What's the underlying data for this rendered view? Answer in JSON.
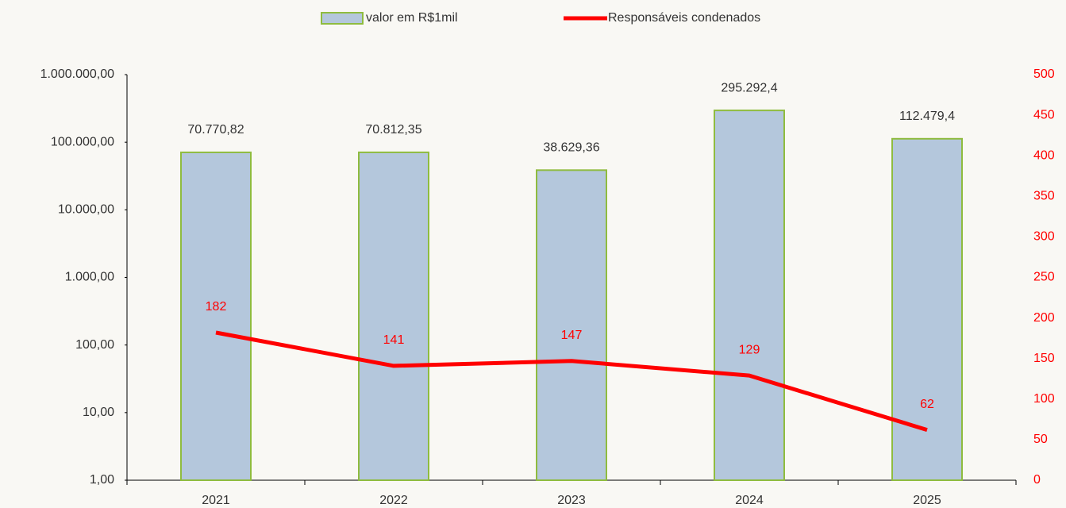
{
  "chart_data": {
    "type": "bar",
    "categories": [
      "2021",
      "2022",
      "2023",
      "2024",
      "2025"
    ],
    "series": [
      {
        "name": "valor em R$1mil",
        "type": "bar",
        "color": "#b4c7dc",
        "edge_color": "#8fbc3f",
        "values": [
          70770.82,
          70812.35,
          38629.36,
          295292.4,
          112479.4
        ],
        "value_labels": [
          "70.770,82",
          "70.812,35",
          "38.629,36",
          "295.292,4",
          "112.479,4"
        ]
      },
      {
        "name": "Responsáveis condenados",
        "type": "line",
        "axis": "y2",
        "color": "#ff0000",
        "values": [
          182,
          141,
          147,
          129,
          62
        ]
      }
    ],
    "ylim": [
      1,
      1000000
    ],
    "log_scale": true,
    "yticks": [
      {
        "value": 1,
        "label": "1,00"
      },
      {
        "value": 10,
        "label": "10,00"
      },
      {
        "value": 100,
        "label": "100,00"
      },
      {
        "value": 1000,
        "label": "1.000,00"
      },
      {
        "value": 10000,
        "label": "10.000,00"
      },
      {
        "value": 100000,
        "label": "100.000,00"
      },
      {
        "value": 1000000,
        "label": "1.000.000,00"
      }
    ],
    "y2lim": [
      0,
      500
    ],
    "y2ticks": [
      0,
      50,
      100,
      150,
      200,
      250,
      300,
      350,
      400,
      450,
      500
    ],
    "y2_color": "#ff0000",
    "grid": false,
    "legend": "top"
  }
}
